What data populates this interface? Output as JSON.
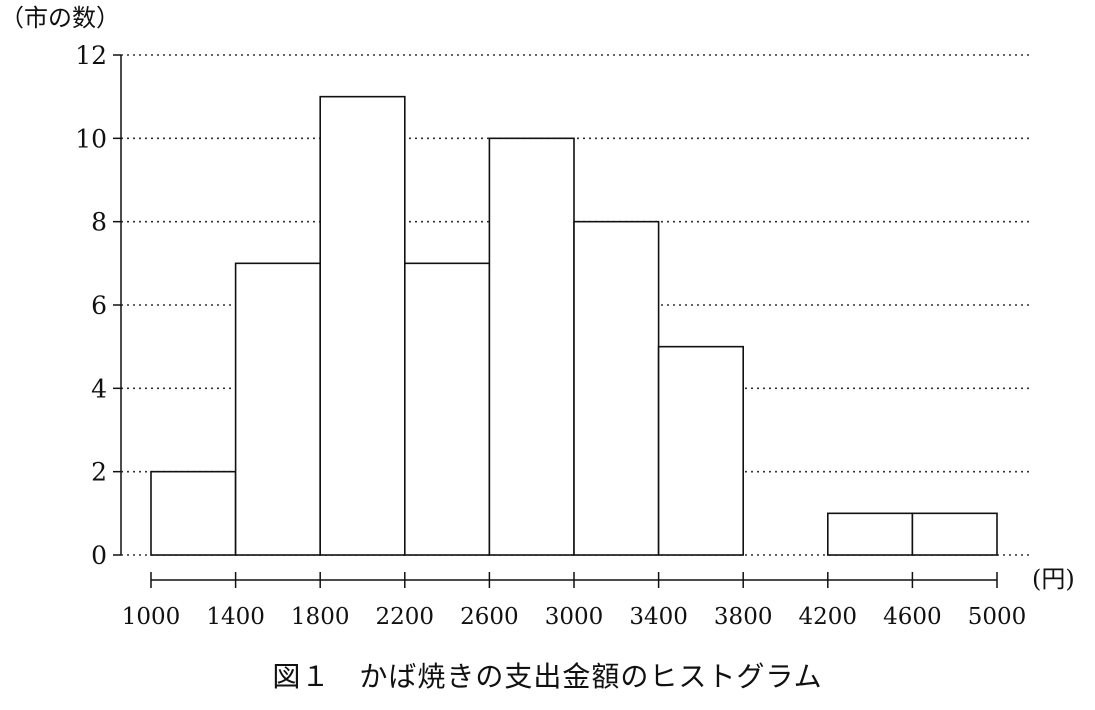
{
  "chart_data": {
    "type": "bar",
    "title": "",
    "ylabel": "（市の数）",
    "x_unit_label": "(円)",
    "caption": "図１　かば焼きの支出金額のヒストグラム",
    "bin_edges": [
      1000,
      1400,
      1800,
      2200,
      2600,
      3000,
      3400,
      3800,
      4200,
      4600,
      5000
    ],
    "categories": [
      "1000-1400",
      "1400-1800",
      "1800-2200",
      "2200-2600",
      "2600-3000",
      "3000-3400",
      "3400-3800",
      "3800-4200",
      "4200-4600",
      "4600-5000"
    ],
    "values": [
      2,
      7,
      11,
      7,
      10,
      8,
      5,
      0,
      1,
      1
    ],
    "ylim": [
      0,
      12
    ],
    "y_ticks": [
      0,
      2,
      4,
      6,
      8,
      10,
      12
    ],
    "x_tick_labels": [
      "1000",
      "1400",
      "1800",
      "2200",
      "2600",
      "3000",
      "3400",
      "3800",
      "4200",
      "4600",
      "5000"
    ],
    "grid": "horizontal dotted",
    "legend": "none"
  },
  "colors": {
    "line": "#111111",
    "bar_fill": "#ffffff",
    "grid": "#333333",
    "background": "#ffffff"
  }
}
